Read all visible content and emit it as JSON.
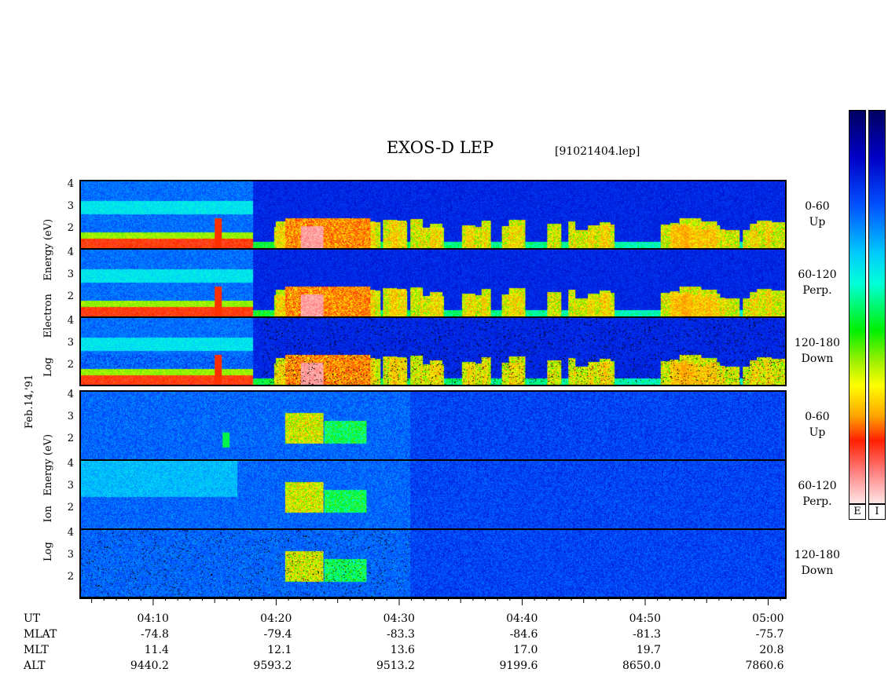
{
  "header": {
    "title": "EXOS-D LEP",
    "file": "[91021404.lep]"
  },
  "y_axis_labels": {
    "electron": [
      "Log",
      "Electron",
      "Energy",
      "(eV)"
    ],
    "ion": [
      "Log",
      "Ion",
      "Energy",
      "(eV)"
    ],
    "date": "Feb.14,'91"
  },
  "panels": [
    {
      "species": "electron",
      "angle": "0-60",
      "direction": "Up",
      "ticks": [
        "4",
        "3",
        "2"
      ]
    },
    {
      "species": "electron",
      "angle": "60-120",
      "direction": "Perp.",
      "ticks": [
        "4",
        "3",
        "2"
      ]
    },
    {
      "species": "electron",
      "angle": "120-180",
      "direction": "Down",
      "ticks": [
        "4",
        "3",
        "2"
      ]
    },
    {
      "species": "ion",
      "angle": "0-60",
      "direction": "Up",
      "ticks": [
        "4",
        "3",
        "2"
      ]
    },
    {
      "species": "ion",
      "angle": "60-120",
      "direction": "Perp.",
      "ticks": [
        "4",
        "3",
        "2"
      ]
    },
    {
      "species": "ion",
      "angle": "120-180",
      "direction": "Down",
      "ticks": [
        "4",
        "3",
        "2"
      ]
    }
  ],
  "colorbars": {
    "electron_label": "E",
    "ion_label": "I"
  },
  "ephemeris": {
    "row_labels": [
      "UT",
      "MLAT",
      "MLT",
      "ALT"
    ],
    "columns": [
      {
        "UT": "04:10",
        "MLAT": "-74.8",
        "MLT": "11.4",
        "ALT": "9440.2"
      },
      {
        "UT": "04:20",
        "MLAT": "-79.4",
        "MLT": "12.1",
        "ALT": "9593.2"
      },
      {
        "UT": "04:30",
        "MLAT": "-83.3",
        "MLT": "13.6",
        "ALT": "9513.2"
      },
      {
        "UT": "04:40",
        "MLAT": "-84.6",
        "MLT": "17.0",
        "ALT": "9199.6"
      },
      {
        "UT": "04:50",
        "MLAT": "-81.3",
        "MLT": "19.7",
        "ALT": "8650.0"
      },
      {
        "UT": "05:00",
        "MLAT": "-75.7",
        "MLT": "20.8",
        "ALT": "7860.6"
      }
    ]
  },
  "chart_data": {
    "type": "heatmap",
    "title": "EXOS-D LEP",
    "xlabel": "UT",
    "x_ticks": [
      "04:10",
      "04:20",
      "04:30",
      "04:40",
      "04:50",
      "05:00"
    ],
    "x_range_minutes": [
      4.0,
      61.5
    ],
    "y_scale": "log",
    "ylim": [
      1,
      4.2
    ],
    "y_ticks": [
      4,
      3,
      2
    ],
    "series": [
      {
        "name": "Electron 0-60 Up"
      },
      {
        "name": "Electron 60-120 Perp."
      },
      {
        "name": "Electron 120-180 Down"
      },
      {
        "name": "Ion 0-60 Up"
      },
      {
        "name": "Ion 60-120 Perp."
      },
      {
        "name": "Ion 120-180 Down"
      }
    ]
  }
}
